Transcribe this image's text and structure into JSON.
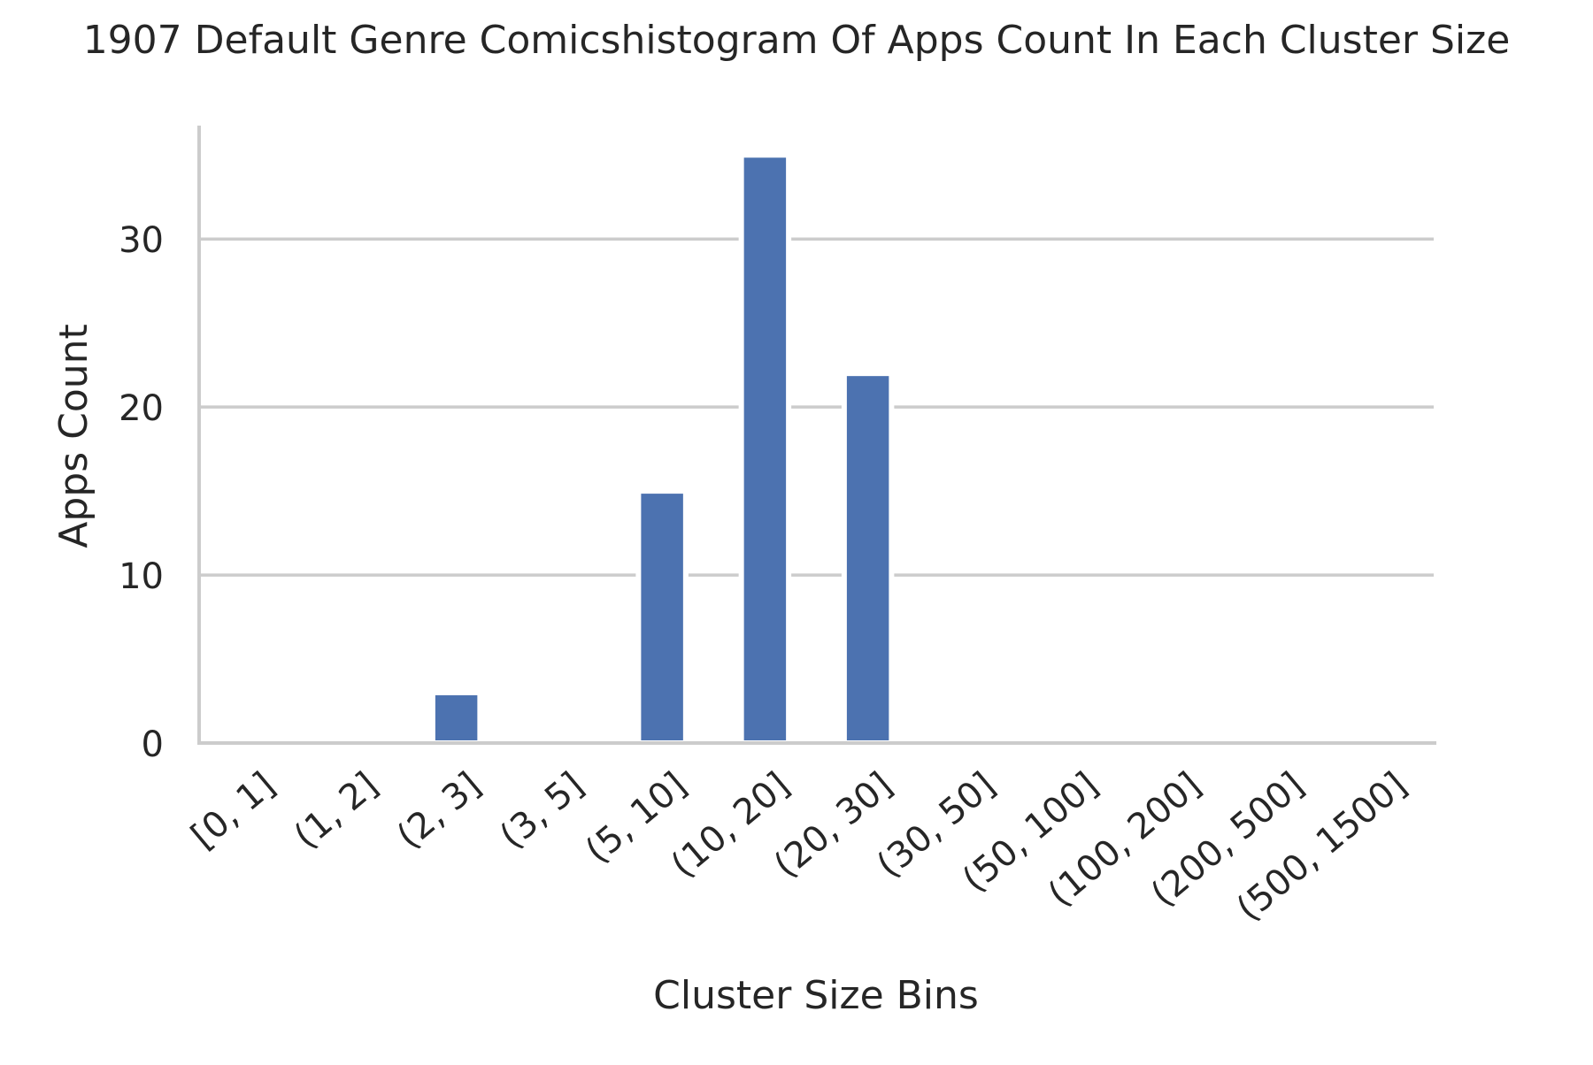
{
  "chart_data": {
    "type": "bar",
    "title": "1907 Default Genre Comicshistogram Of Apps Count In Each Cluster Size",
    "xlabel": "Cluster Size Bins",
    "ylabel": "Apps Count",
    "categories": [
      "[0, 1]",
      "(1, 2]",
      "(2, 3]",
      "(3, 5]",
      "(5, 10]",
      "(10, 20]",
      "(20, 30]",
      "(30, 50]",
      "(50, 100]",
      "(100, 200]",
      "(200, 500]",
      "(500, 1500]"
    ],
    "values": [
      0,
      0,
      3,
      0,
      15,
      35,
      22,
      0,
      0,
      0,
      0,
      0
    ],
    "ylim": [
      0,
      36.75
    ],
    "yticks": [
      0,
      10,
      20,
      30
    ],
    "grid": "horizontal",
    "bar_color": "#4c72b0",
    "grid_color": "#cccccc"
  }
}
